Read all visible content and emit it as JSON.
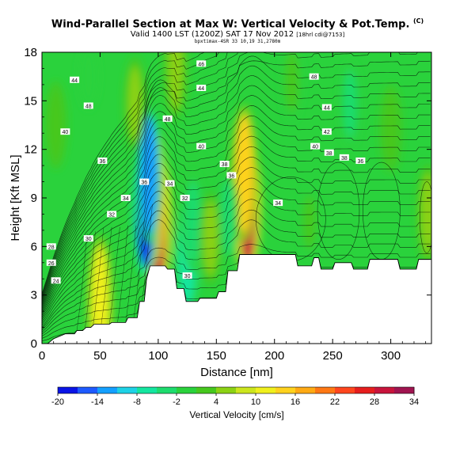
{
  "header": {
    "title": "Wind-Parallel Section at Max W: Vertical Velocity & Pot.Temp.",
    "title_mark": "(C)",
    "subtitle": "Valid 1400 LST (1200Z) SAT 17 Nov 2012",
    "subtitle_note": "[18hrl cdi@7153]",
    "subsubtitle": "bpxtimax-4SR 33 10,19 31,2780m"
  },
  "chart_data": {
    "type": "heatmap",
    "xlabel": "Distance [nm]",
    "ylabel": "Height [Kft MSL]",
    "xlim": [
      0,
      335
    ],
    "ylim": [
      0,
      18
    ],
    "xticks": [
      0,
      50,
      100,
      150,
      200,
      250,
      300
    ],
    "yticks": [
      0,
      3,
      6,
      9,
      12,
      15,
      18
    ],
    "grid": false,
    "colorbar": {
      "label": "Vertical Velocity [cm/s]",
      "ticks": [
        -20,
        -14,
        -8,
        -2,
        4,
        10,
        16,
        22,
        28,
        34
      ],
      "colors": [
        "#0a14e6",
        "#1e5aff",
        "#14a0ff",
        "#1ed2e6",
        "#14e6a0",
        "#1edc6e",
        "#2ad23c",
        "#46c81e",
        "#8cd214",
        "#cce61e",
        "#f0f01e",
        "#ffd21e",
        "#ffaa14",
        "#ff7814",
        "#ff461e",
        "#e61e1e",
        "#c8143c",
        "#a01450"
      ]
    },
    "terrain": [
      [
        0,
        0
      ],
      [
        5,
        0
      ],
      [
        10,
        0.3
      ],
      [
        20,
        0.6
      ],
      [
        28,
        0.6
      ],
      [
        30,
        0.8
      ],
      [
        35,
        0.8
      ],
      [
        38,
        1.0
      ],
      [
        42,
        1.0
      ],
      [
        45,
        1.2
      ],
      [
        58,
        1.2
      ],
      [
        60,
        1.3
      ],
      [
        72,
        1.3
      ],
      [
        74,
        1.6
      ],
      [
        82,
        1.6
      ],
      [
        84,
        2.6
      ],
      [
        88,
        2.6
      ],
      [
        90,
        4.0
      ],
      [
        93,
        4.8
      ],
      [
        106,
        4.8
      ],
      [
        108,
        4.6
      ],
      [
        114,
        4.6
      ],
      [
        116,
        3.4
      ],
      [
        122,
        3.4
      ],
      [
        124,
        2.6
      ],
      [
        134,
        2.6
      ],
      [
        136,
        2.8
      ],
      [
        150,
        2.8
      ],
      [
        152,
        3.2
      ],
      [
        158,
        3.2
      ],
      [
        160,
        4.5
      ],
      [
        168,
        4.5
      ],
      [
        170,
        5.5
      ],
      [
        218,
        5.5
      ],
      [
        220,
        4.8
      ],
      [
        232,
        4.8
      ],
      [
        234,
        5.3
      ],
      [
        238,
        5.3
      ],
      [
        240,
        4.6
      ],
      [
        250,
        4.6
      ],
      [
        252,
        5.0
      ],
      [
        266,
        5.0
      ],
      [
        268,
        4.6
      ],
      [
        280,
        4.6
      ],
      [
        282,
        5.2
      ],
      [
        306,
        5.2
      ],
      [
        308,
        4.6
      ],
      [
        322,
        4.6
      ],
      [
        324,
        5.2
      ],
      [
        335,
        5.2
      ]
    ],
    "w_features": [
      {
        "x": 100,
        "y": 7.6,
        "w": 30
      },
      {
        "x": 96,
        "y": 9.2,
        "w": 18
      },
      {
        "x": 177,
        "y": 8.5,
        "w": 28
      },
      {
        "x": 174,
        "y": 10.5,
        "w": 14
      },
      {
        "x": 89,
        "y": 8.4,
        "w": -20
      },
      {
        "x": 92,
        "y": 10.4,
        "w": -12
      },
      {
        "x": 50,
        "y": 2.4,
        "w": 12
      },
      {
        "x": 125,
        "y": 5.4,
        "w": -7
      },
      {
        "x": 130,
        "y": 7.5,
        "w": -5
      },
      {
        "x": 160,
        "y": 7.8,
        "w": -4
      },
      {
        "x": 145,
        "y": 6.5,
        "w": 4
      },
      {
        "x": 230,
        "y": 7.5,
        "w": 1
      },
      {
        "x": 12,
        "y": 13.5,
        "w": 3
      },
      {
        "x": 80,
        "y": 14.8,
        "w": 4
      },
      {
        "x": 150,
        "y": 14.2,
        "w": -2
      },
      {
        "x": 265,
        "y": 14.8,
        "w": -3
      },
      {
        "x": 300,
        "y": 13.3,
        "w": 3
      },
      {
        "x": 332,
        "y": 8,
        "w": 5
      },
      {
        "x": 115,
        "y": 17.2,
        "w": 6
      },
      {
        "x": 40,
        "y": 16.5,
        "w": 0
      },
      {
        "x": 215,
        "y": 16.2,
        "w": 2
      }
    ],
    "theta_labels": [
      {
        "x": 12,
        "y": 3.9,
        "text": "24"
      },
      {
        "x": 8,
        "y": 5.0,
        "text": "26"
      },
      {
        "x": 8,
        "y": 6.0,
        "text": "28"
      },
      {
        "x": 40,
        "y": 6.5,
        "text": "30"
      },
      {
        "x": 60,
        "y": 8.0,
        "text": "32"
      },
      {
        "x": 72,
        "y": 9.0,
        "text": "34"
      },
      {
        "x": 52,
        "y": 11.3,
        "text": "36"
      },
      {
        "x": 20,
        "y": 13.1,
        "text": "40"
      },
      {
        "x": 40,
        "y": 14.7,
        "text": "48"
      },
      {
        "x": 28,
        "y": 16.3,
        "text": "44"
      },
      {
        "x": 108,
        "y": 13.9,
        "text": "48"
      },
      {
        "x": 137,
        "y": 12.2,
        "text": "40"
      },
      {
        "x": 137,
        "y": 15.8,
        "text": "44"
      },
      {
        "x": 137,
        "y": 17.3,
        "text": "46"
      },
      {
        "x": 88,
        "y": 10.0,
        "text": "36"
      },
      {
        "x": 110,
        "y": 9.9,
        "text": "34"
      },
      {
        "x": 123,
        "y": 9.0,
        "text": "32"
      },
      {
        "x": 125,
        "y": 4.2,
        "text": "30"
      },
      {
        "x": 157,
        "y": 11.1,
        "text": "38"
      },
      {
        "x": 163,
        "y": 10.4,
        "text": "36"
      },
      {
        "x": 203,
        "y": 8.7,
        "text": "34"
      },
      {
        "x": 234,
        "y": 16.5,
        "text": "48"
      },
      {
        "x": 245,
        "y": 14.6,
        "text": "44"
      },
      {
        "x": 235,
        "y": 12.2,
        "text": "40"
      },
      {
        "x": 245,
        "y": 13.1,
        "text": "42"
      },
      {
        "x": 247,
        "y": 11.8,
        "text": "38"
      },
      {
        "x": 260,
        "y": 11.5,
        "text": "38"
      },
      {
        "x": 274,
        "y": 11.3,
        "text": "36"
      }
    ]
  }
}
